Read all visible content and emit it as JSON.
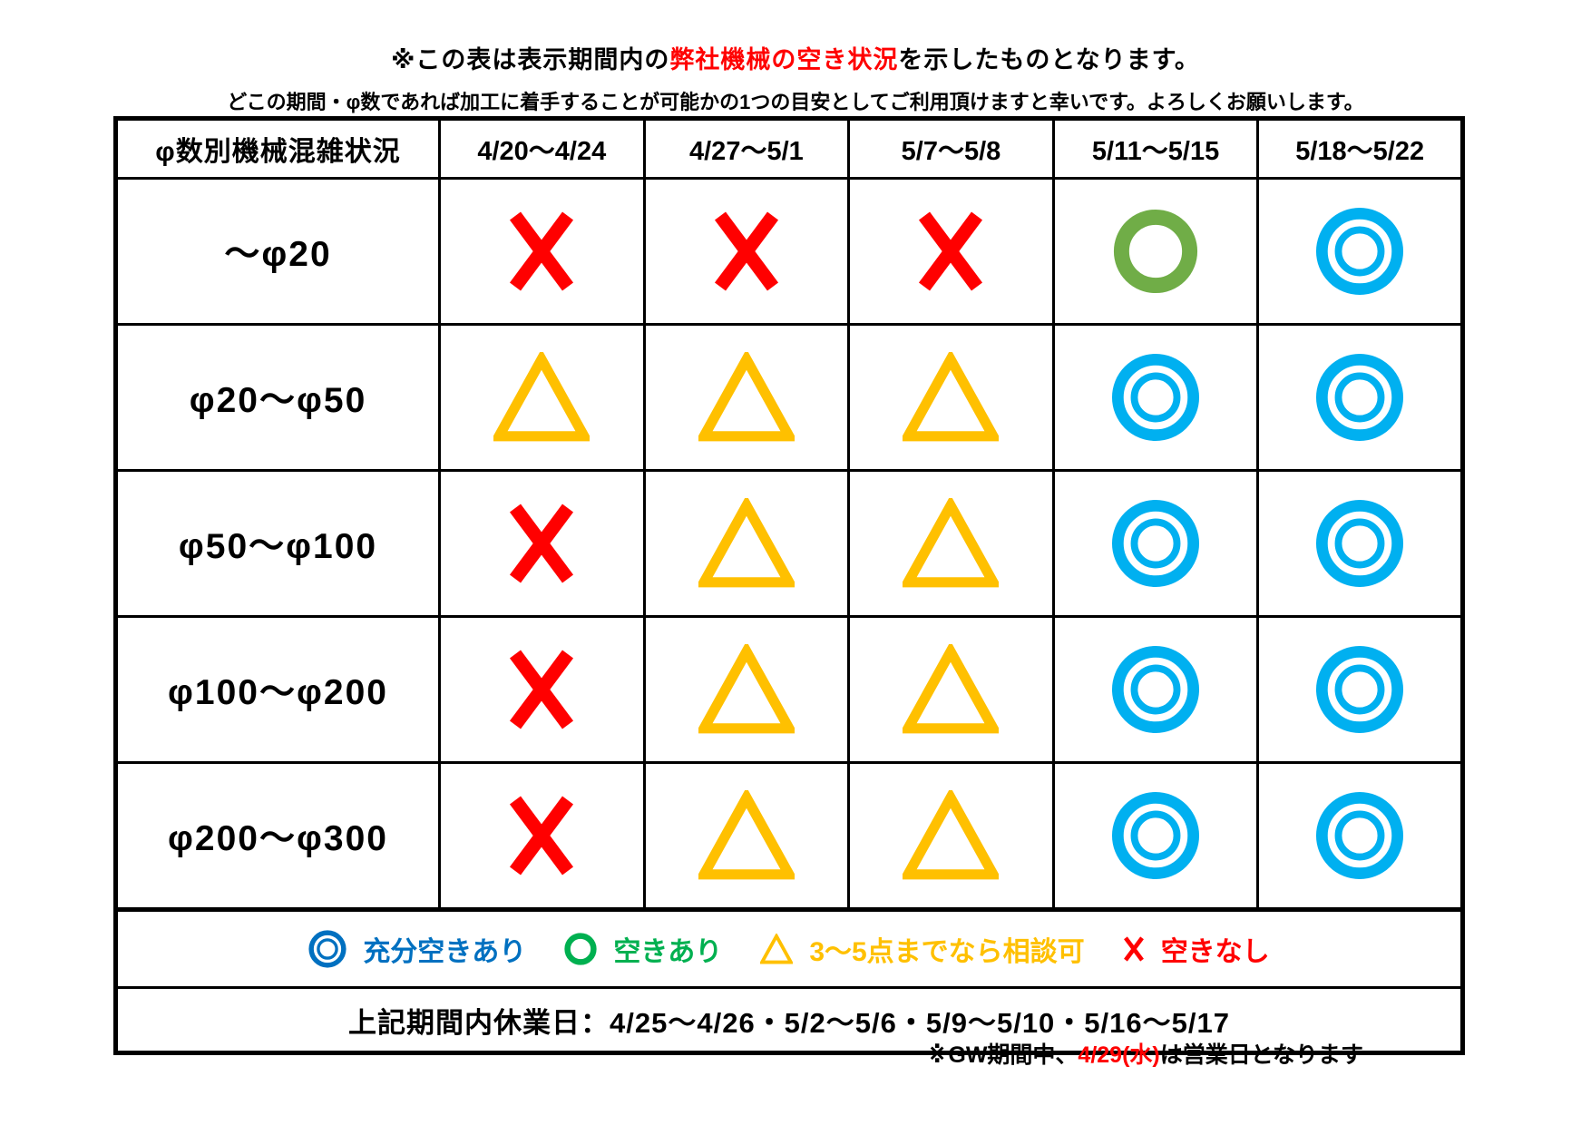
{
  "header": {
    "line1_prefix": "※この表は表示期間内の",
    "line1_highlight": "弊社機械の空き状況",
    "line1_suffix": "を示したものとなります。",
    "line2": "どこの期間・φ数であれば加工に着手することが可能かの1つの目安としてご利用頂けますと幸いです。よろしくお願いします。"
  },
  "colors": {
    "unavailable_x": "#ff0000",
    "consult_triangle": "#ffc000",
    "available_circle": "#70ad47",
    "plenty_double_circle": "#00b0f0",
    "legend_plenty_blue": "#0070c0",
    "legend_available_green": "#00b050",
    "highlight_red": "#ff0000",
    "border_black": "#000000"
  },
  "table": {
    "corner_label": "φ数別機械混雑状況",
    "period_headers": [
      "4/20〜4/24",
      "4/27〜5/1",
      "5/7〜5/8",
      "5/11〜5/15",
      "5/18〜5/22"
    ],
    "rows": [
      {
        "label": "〜φ20",
        "cells": [
          "x",
          "x",
          "x",
          "circle",
          "double-circle"
        ]
      },
      {
        "label": "φ20〜φ50",
        "cells": [
          "triangle",
          "triangle",
          "triangle",
          "double-circle",
          "double-circle"
        ]
      },
      {
        "label": "φ50〜φ100",
        "cells": [
          "x",
          "triangle",
          "triangle",
          "double-circle",
          "double-circle"
        ]
      },
      {
        "label": "φ100〜φ200",
        "cells": [
          "x",
          "triangle",
          "triangle",
          "double-circle",
          "double-circle"
        ]
      },
      {
        "label": "φ200〜φ300",
        "cells": [
          "x",
          "triangle",
          "triangle",
          "double-circle",
          "double-circle"
        ]
      }
    ],
    "legend": [
      {
        "symbol": "double-circle",
        "label": "充分空きあり",
        "color": "#0070c0"
      },
      {
        "symbol": "circle",
        "label": "空きあり",
        "color": "#00b050"
      },
      {
        "symbol": "triangle",
        "label": "3〜5点までなら相談可",
        "color": "#ffc000"
      },
      {
        "symbol": "x",
        "label": "空きなし",
        "color": "#ff0000"
      }
    ],
    "closed_days_label": "上記期間内休業日：",
    "closed_days_value": "4/25〜4/26・5/2〜5/6・5/9〜5/10・5/16〜5/17"
  },
  "footer": {
    "prefix": "※GW期間中、",
    "highlight": "4/29(水)",
    "suffix": "は営業日となります"
  }
}
